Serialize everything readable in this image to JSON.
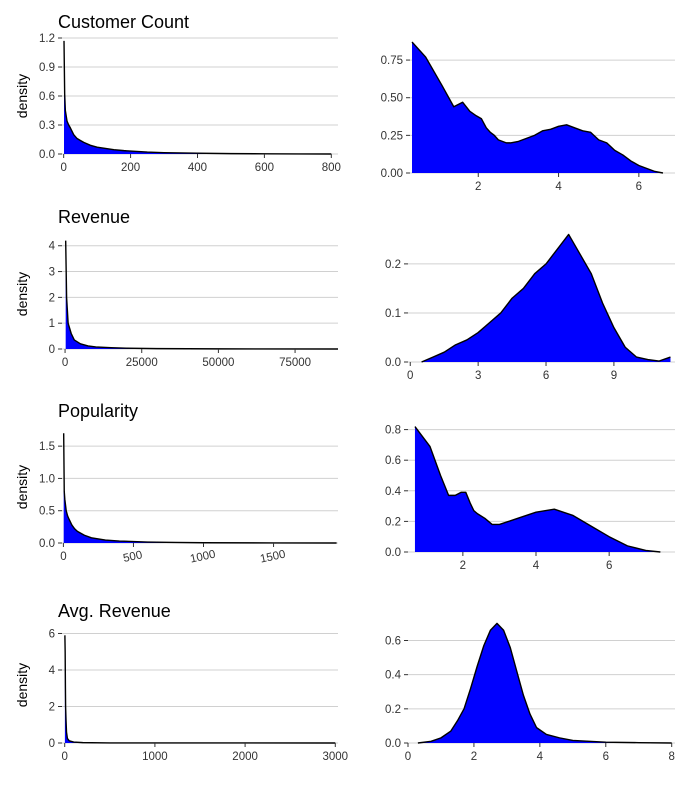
{
  "chart_data": [
    {
      "type": "area",
      "title": "Customer Count",
      "ylabel": "density",
      "xlim": [
        -5,
        820
      ],
      "ylim": [
        0,
        1.2
      ],
      "xticks": [
        0,
        200,
        400,
        600,
        800
      ],
      "yticks": [
        0.0,
        0.3,
        0.6,
        0.9,
        1.2
      ],
      "xtick_labels": [
        "0",
        "200",
        "400",
        "600",
        "800"
      ],
      "ytick_labels": [
        "0.0",
        "0.3",
        "0.6",
        "0.9",
        "1.2"
      ],
      "fill_color": "#0000ff",
      "line_color": "#000000",
      "grid": "horizontal",
      "x": [
        1,
        3,
        5,
        10,
        15,
        20,
        30,
        40,
        50,
        60,
        80,
        100,
        120,
        150,
        180,
        200,
        250,
        300,
        400,
        500,
        600,
        700,
        800
      ],
      "y": [
        1.17,
        0.62,
        0.45,
        0.34,
        0.3,
        0.27,
        0.2,
        0.16,
        0.14,
        0.12,
        0.09,
        0.07,
        0.06,
        0.045,
        0.035,
        0.03,
        0.02,
        0.014,
        0.008,
        0.004,
        0.002,
        0.001,
        0.0
      ]
    },
    {
      "type": "area",
      "title": "",
      "ylabel": "",
      "xlim": [
        0.3,
        6.9
      ],
      "ylim": [
        0,
        0.87
      ],
      "xticks": [
        2,
        4,
        6
      ],
      "yticks": [
        0.0,
        0.25,
        0.5,
        0.75
      ],
      "xtick_labels": [
        "2",
        "4",
        "6"
      ],
      "ytick_labels": [
        "0.00",
        "0.25",
        "0.50",
        "0.75"
      ],
      "fill_color": "#0000ff",
      "line_color": "#000000",
      "grid": "horizontal",
      "x": [
        0.35,
        0.69,
        1.1,
        1.39,
        1.61,
        1.79,
        1.95,
        2.08,
        2.2,
        2.3,
        2.4,
        2.5,
        2.6,
        2.7,
        2.8,
        3.0,
        3.2,
        3.4,
        3.6,
        3.8,
        4.0,
        4.2,
        4.4,
        4.6,
        4.8,
        5.0,
        5.2,
        5.4,
        5.6,
        5.8,
        6.0,
        6.2,
        6.4,
        6.6
      ],
      "y": [
        0.87,
        0.77,
        0.58,
        0.44,
        0.47,
        0.41,
        0.38,
        0.36,
        0.3,
        0.27,
        0.25,
        0.22,
        0.21,
        0.2,
        0.2,
        0.21,
        0.23,
        0.25,
        0.28,
        0.29,
        0.31,
        0.32,
        0.3,
        0.28,
        0.27,
        0.22,
        0.2,
        0.15,
        0.12,
        0.08,
        0.05,
        0.03,
        0.01,
        0.0
      ]
    },
    {
      "type": "area",
      "title": "Revenue",
      "ylabel": "density",
      "xlim": [
        -1000,
        89000
      ],
      "ylim": [
        0,
        4.3
      ],
      "xticks": [
        0,
        25000,
        50000,
        75000
      ],
      "yticks": [
        0,
        1,
        2,
        3,
        4
      ],
      "xtick_labels": [
        "0",
        "25000",
        "50000",
        "75000"
      ],
      "ytick_labels": [
        "0",
        "1",
        "2",
        "3",
        "4"
      ],
      "fill_color": "#0000ff",
      "line_color": "#000000",
      "grid": "horizontal",
      "x": [
        200,
        500,
        1000,
        2000,
        3000,
        5000,
        7500,
        10000,
        15000,
        20000,
        30000,
        50000,
        89000
      ],
      "y": [
        4.2,
        2.0,
        1.0,
        0.6,
        0.35,
        0.2,
        0.12,
        0.08,
        0.05,
        0.03,
        0.015,
        0.005,
        0.0
      ]
    },
    {
      "type": "area",
      "title": "",
      "ylabel": "",
      "xlim": [
        -0.1,
        11.7
      ],
      "ylim": [
        0,
        0.265
      ],
      "xticks": [
        0,
        3,
        6,
        9
      ],
      "yticks": [
        0.0,
        0.1,
        0.2
      ],
      "xtick_labels": [
        "0",
        "3",
        "6",
        "9"
      ],
      "ytick_labels": [
        "0.0",
        "0.1",
        "0.2"
      ],
      "fill_color": "#0000ff",
      "line_color": "#000000",
      "grid": "horizontal",
      "x": [
        0.5,
        1.0,
        1.5,
        2.0,
        2.5,
        3.0,
        3.5,
        4.0,
        4.5,
        5.0,
        5.5,
        6.0,
        6.5,
        7.0,
        7.5,
        8.0,
        8.5,
        9.0,
        9.5,
        10.0,
        10.5,
        11.0,
        11.5
      ],
      "y": [
        0.0,
        0.01,
        0.02,
        0.035,
        0.045,
        0.06,
        0.08,
        0.1,
        0.13,
        0.15,
        0.18,
        0.2,
        0.23,
        0.26,
        0.22,
        0.18,
        0.12,
        0.07,
        0.03,
        0.01,
        0.005,
        0.002,
        0.01
      ]
    },
    {
      "type": "area",
      "title": "Popularity",
      "ylabel": "density",
      "xlim": [
        -10,
        1960
      ],
      "ylim": [
        0,
        1.75
      ],
      "xticks": [
        0,
        500,
        1000,
        1500
      ],
      "yticks": [
        0.0,
        0.5,
        1.0,
        1.5
      ],
      "xtick_labels": [
        "0",
        "500",
        "1000",
        "1500"
      ],
      "ytick_labels": [
        "0.0",
        "0.5",
        "1.0",
        "1.5"
      ],
      "fill_color": "#0000ff",
      "line_color": "#000000",
      "grid": "horizontal",
      "x": [
        2,
        6,
        10,
        20,
        30,
        40,
        60,
        80,
        100,
        150,
        200,
        300,
        400,
        600,
        800,
        1000,
        1500,
        1950
      ],
      "y": [
        1.7,
        0.8,
        0.68,
        0.5,
        0.42,
        0.37,
        0.28,
        0.22,
        0.18,
        0.12,
        0.08,
        0.045,
        0.03,
        0.015,
        0.008,
        0.004,
        0.001,
        0.0
      ]
    },
    {
      "type": "area",
      "title": "",
      "ylabel": "",
      "xlim": [
        0.5,
        7.8
      ],
      "ylim": [
        0,
        0.83
      ],
      "xticks": [
        2,
        4,
        6
      ],
      "yticks": [
        0.0,
        0.2,
        0.4,
        0.6,
        0.8
      ],
      "xtick_labels": [
        "2",
        "4",
        "6"
      ],
      "ytick_labels": [
        "0.0",
        "0.2",
        "0.4",
        "0.6",
        "0.8"
      ],
      "fill_color": "#0000ff",
      "line_color": "#000000",
      "grid": "horizontal",
      "x": [
        0.69,
        1.1,
        1.39,
        1.61,
        1.79,
        1.95,
        2.08,
        2.2,
        2.3,
        2.4,
        2.6,
        2.8,
        3.0,
        3.5,
        4.0,
        4.5,
        5.0,
        5.5,
        6.0,
        6.5,
        7.0,
        7.4
      ],
      "y": [
        0.82,
        0.69,
        0.5,
        0.37,
        0.37,
        0.39,
        0.39,
        0.32,
        0.27,
        0.25,
        0.22,
        0.18,
        0.18,
        0.22,
        0.26,
        0.28,
        0.24,
        0.17,
        0.1,
        0.04,
        0.01,
        0.0
      ]
    },
    {
      "type": "area",
      "title": "Avg. Revenue",
      "ylabel": "density",
      "xlim": [
        -30,
        3030
      ],
      "ylim": [
        0,
        6.3
      ],
      "xticks": [
        0,
        1000,
        2000,
        3000
      ],
      "yticks": [
        0,
        2,
        4,
        6
      ],
      "xtick_labels": [
        "0",
        "1000",
        "2000",
        "3000"
      ],
      "ytick_labels": [
        "0",
        "2",
        "4",
        "6"
      ],
      "fill_color": "#0000ff",
      "line_color": "#000000",
      "grid": "horizontal",
      "x": [
        2,
        5,
        8,
        10,
        15,
        20,
        30,
        50,
        100,
        200,
        500,
        1000,
        2000,
        3000
      ],
      "y": [
        5.9,
        5.0,
        3.0,
        2.0,
        1.2,
        0.6,
        0.25,
        0.12,
        0.05,
        0.02,
        0.005,
        0.002,
        0.001,
        0.0
      ]
    },
    {
      "type": "area",
      "title": "",
      "ylabel": "",
      "xlim": [
        0,
        8.1
      ],
      "ylim": [
        0,
        0.72
      ],
      "xticks": [
        0,
        2,
        4,
        6,
        8
      ],
      "yticks": [
        0.0,
        0.2,
        0.4,
        0.6
      ],
      "xtick_labels": [
        "0",
        "2",
        "4",
        "6",
        "8"
      ],
      "ytick_labels": [
        "0.0",
        "0.2",
        "0.4",
        "0.6"
      ],
      "fill_color": "#0000ff",
      "line_color": "#000000",
      "grid": "horizontal",
      "x": [
        0.3,
        0.7,
        1.0,
        1.3,
        1.5,
        1.7,
        1.9,
        2.1,
        2.3,
        2.5,
        2.7,
        2.9,
        3.1,
        3.3,
        3.5,
        3.7,
        3.9,
        4.2,
        4.6,
        5.0,
        5.5,
        6.0,
        7.0,
        8.0
      ],
      "y": [
        0.0,
        0.01,
        0.03,
        0.07,
        0.13,
        0.2,
        0.32,
        0.45,
        0.57,
        0.66,
        0.7,
        0.66,
        0.56,
        0.42,
        0.28,
        0.17,
        0.09,
        0.05,
        0.03,
        0.015,
        0.01,
        0.005,
        0.002,
        0.0
      ]
    }
  ]
}
